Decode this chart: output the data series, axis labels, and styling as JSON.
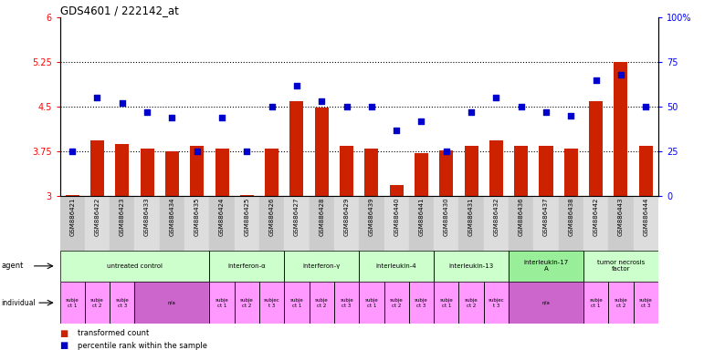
{
  "title": "GDS4601 / 222142_at",
  "samples": [
    "GSM886421",
    "GSM886422",
    "GSM886423",
    "GSM886433",
    "GSM886434",
    "GSM886435",
    "GSM886424",
    "GSM886425",
    "GSM886426",
    "GSM886427",
    "GSM886428",
    "GSM886429",
    "GSM886439",
    "GSM886440",
    "GSM886441",
    "GSM886430",
    "GSM886431",
    "GSM886432",
    "GSM886436",
    "GSM886437",
    "GSM886438",
    "GSM886442",
    "GSM886443",
    "GSM886444"
  ],
  "bar_values": [
    3.01,
    3.93,
    3.88,
    3.8,
    3.75,
    3.84,
    3.8,
    3.01,
    3.8,
    4.6,
    4.48,
    3.84,
    3.8,
    3.18,
    3.72,
    3.76,
    3.84,
    3.93,
    3.84,
    3.84,
    3.8,
    4.6,
    5.25,
    3.84
  ],
  "percentile_values": [
    25,
    55,
    52,
    47,
    44,
    25,
    44,
    25,
    50,
    62,
    53,
    50,
    50,
    37,
    42,
    25,
    47,
    55,
    50,
    47,
    45,
    65,
    68,
    50
  ],
  "bar_color": "#cc2200",
  "dot_color": "#0000cc",
  "dotted_line_values": [
    3.75,
    4.5,
    5.25
  ],
  "ylim_left": [
    3.0,
    6.0
  ],
  "ylim_right": [
    0,
    100
  ],
  "yticks_left": [
    3.0,
    3.75,
    4.5,
    5.25,
    6.0
  ],
  "yticks_right": [
    0,
    25,
    50,
    75,
    100
  ],
  "yticklabels_left": [
    "3",
    "3.75",
    "4.5",
    "5.25",
    "6"
  ],
  "yticklabels_right": [
    "0",
    "25",
    "50",
    "75",
    "100%"
  ],
  "agent_groups": [
    {
      "label": "untreated control",
      "start": 0,
      "end": 5,
      "color": "#ccffcc"
    },
    {
      "label": "interferon-α",
      "start": 6,
      "end": 8,
      "color": "#ccffcc"
    },
    {
      "label": "interferon-γ",
      "start": 9,
      "end": 11,
      "color": "#ccffcc"
    },
    {
      "label": "interleukin-4",
      "start": 12,
      "end": 14,
      "color": "#ccffcc"
    },
    {
      "label": "interleukin-13",
      "start": 15,
      "end": 17,
      "color": "#ccffcc"
    },
    {
      "label": "interleukin-17\nA",
      "start": 18,
      "end": 20,
      "color": "#99ee99"
    },
    {
      "label": "tumor necrosis\nfactor",
      "start": 21,
      "end": 23,
      "color": "#ccffcc"
    }
  ],
  "individual_groups": [
    {
      "label": "subje\nct 1",
      "start": 0,
      "end": 0,
      "color": "#ff99ff"
    },
    {
      "label": "subje\nct 2",
      "start": 1,
      "end": 1,
      "color": "#ff99ff"
    },
    {
      "label": "subje\nct 3",
      "start": 2,
      "end": 2,
      "color": "#ff99ff"
    },
    {
      "label": "n/a",
      "start": 3,
      "end": 5,
      "color": "#cc66cc"
    },
    {
      "label": "subje\nct 1",
      "start": 6,
      "end": 6,
      "color": "#ff99ff"
    },
    {
      "label": "subje\nct 2",
      "start": 7,
      "end": 7,
      "color": "#ff99ff"
    },
    {
      "label": "subjec\nt 3",
      "start": 8,
      "end": 8,
      "color": "#ff99ff"
    },
    {
      "label": "subje\nct 1",
      "start": 9,
      "end": 9,
      "color": "#ff99ff"
    },
    {
      "label": "subje\nct 2",
      "start": 10,
      "end": 10,
      "color": "#ff99ff"
    },
    {
      "label": "subje\nct 3",
      "start": 11,
      "end": 11,
      "color": "#ff99ff"
    },
    {
      "label": "subje\nct 1",
      "start": 12,
      "end": 12,
      "color": "#ff99ff"
    },
    {
      "label": "subje\nct 2",
      "start": 13,
      "end": 13,
      "color": "#ff99ff"
    },
    {
      "label": "subje\nct 3",
      "start": 14,
      "end": 14,
      "color": "#ff99ff"
    },
    {
      "label": "subje\nct 1",
      "start": 15,
      "end": 15,
      "color": "#ff99ff"
    },
    {
      "label": "subje\nct 2",
      "start": 16,
      "end": 16,
      "color": "#ff99ff"
    },
    {
      "label": "subjec\nt 3",
      "start": 17,
      "end": 17,
      "color": "#ff99ff"
    },
    {
      "label": "n/a",
      "start": 18,
      "end": 20,
      "color": "#cc66cc"
    },
    {
      "label": "subje\nct 1",
      "start": 21,
      "end": 21,
      "color": "#ff99ff"
    },
    {
      "label": "subje\nct 2",
      "start": 22,
      "end": 22,
      "color": "#ff99ff"
    },
    {
      "label": "subje\nct 3",
      "start": 23,
      "end": 23,
      "color": "#ff99ff"
    }
  ],
  "bg_color": "#ffffff",
  "bar_width": 0.55,
  "sample_bg_even": "#cccccc",
  "sample_bg_odd": "#dddddd"
}
